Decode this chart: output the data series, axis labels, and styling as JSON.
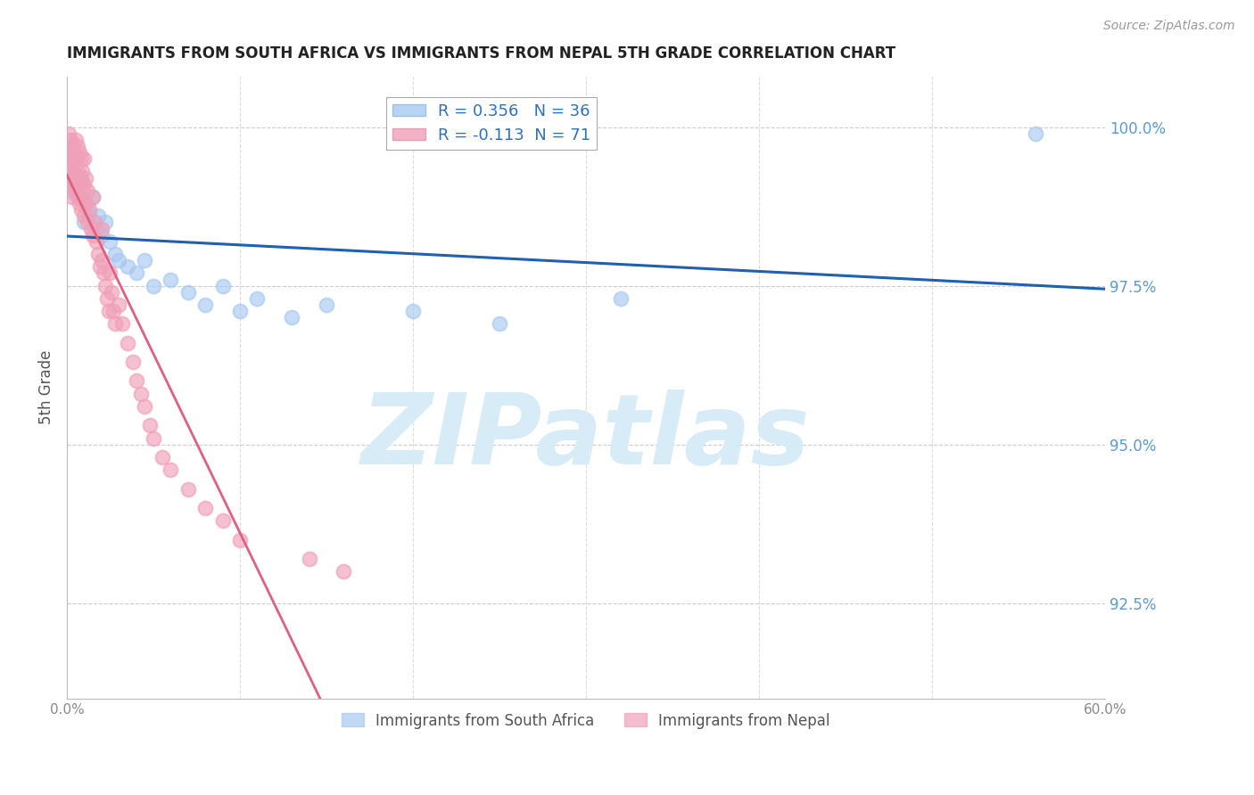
{
  "title": "IMMIGRANTS FROM SOUTH AFRICA VS IMMIGRANTS FROM NEPAL 5TH GRADE CORRELATION CHART",
  "source": "Source: ZipAtlas.com",
  "ylabel": "5th Grade",
  "right_ytick_labels": [
    "100.0%",
    "97.5%",
    "95.0%",
    "92.5%"
  ],
  "right_ytick_values": [
    1.0,
    0.975,
    0.95,
    0.925
  ],
  "xlim": [
    0.0,
    0.6
  ],
  "ylim": [
    0.91,
    1.008
  ],
  "R_south_africa": 0.356,
  "N_south_africa": 36,
  "R_nepal": -0.113,
  "N_nepal": 71,
  "color_south_africa": "#a8c8f0",
  "color_nepal": "#f0a0b8",
  "color_trendline_south_africa": "#2060b0",
  "color_trendline_nepal": "#e06080",
  "color_right_axis": "#5b9bd5",
  "watermark_color": "#d8ecf8",
  "sa_x": [
    0.001,
    0.002,
    0.003,
    0.004,
    0.005,
    0.006,
    0.007,
    0.008,
    0.01,
    0.011,
    0.012,
    0.013,
    0.015,
    0.017,
    0.018,
    0.02,
    0.022,
    0.025,
    0.028,
    0.03,
    0.035,
    0.04,
    0.045,
    0.05,
    0.06,
    0.07,
    0.08,
    0.09,
    0.1,
    0.11,
    0.13,
    0.15,
    0.2,
    0.25,
    0.32,
    0.56
  ],
  "sa_y": [
    0.99,
    0.991,
    0.993,
    0.991,
    0.99,
    0.992,
    0.989,
    0.992,
    0.985,
    0.988,
    0.987,
    0.986,
    0.989,
    0.984,
    0.986,
    0.983,
    0.985,
    0.982,
    0.98,
    0.979,
    0.978,
    0.977,
    0.979,
    0.975,
    0.976,
    0.974,
    0.972,
    0.975,
    0.971,
    0.973,
    0.97,
    0.972,
    0.971,
    0.969,
    0.973,
    0.999
  ],
  "ne_x": [
    0.001,
    0.001,
    0.001,
    0.001,
    0.002,
    0.002,
    0.002,
    0.002,
    0.003,
    0.003,
    0.003,
    0.003,
    0.004,
    0.004,
    0.004,
    0.005,
    0.005,
    0.005,
    0.006,
    0.006,
    0.006,
    0.007,
    0.007,
    0.007,
    0.008,
    0.008,
    0.008,
    0.009,
    0.009,
    0.01,
    0.01,
    0.01,
    0.011,
    0.011,
    0.012,
    0.012,
    0.013,
    0.014,
    0.015,
    0.015,
    0.016,
    0.017,
    0.018,
    0.019,
    0.02,
    0.02,
    0.021,
    0.022,
    0.023,
    0.024,
    0.025,
    0.026,
    0.027,
    0.028,
    0.03,
    0.032,
    0.035,
    0.038,
    0.04,
    0.043,
    0.045,
    0.048,
    0.05,
    0.055,
    0.06,
    0.07,
    0.08,
    0.09,
    0.1,
    0.14,
    0.16
  ],
  "ne_y": [
    0.999,
    0.997,
    0.995,
    0.993,
    0.998,
    0.996,
    0.994,
    0.991,
    0.997,
    0.995,
    0.992,
    0.989,
    0.996,
    0.993,
    0.99,
    0.998,
    0.995,
    0.991,
    0.997,
    0.993,
    0.989,
    0.996,
    0.992,
    0.988,
    0.995,
    0.991,
    0.987,
    0.993,
    0.989,
    0.995,
    0.991,
    0.986,
    0.992,
    0.988,
    0.99,
    0.985,
    0.987,
    0.984,
    0.989,
    0.983,
    0.985,
    0.982,
    0.98,
    0.978,
    0.984,
    0.979,
    0.977,
    0.975,
    0.973,
    0.971,
    0.977,
    0.974,
    0.971,
    0.969,
    0.972,
    0.969,
    0.966,
    0.963,
    0.96,
    0.958,
    0.956,
    0.953,
    0.951,
    0.948,
    0.946,
    0.943,
    0.94,
    0.938,
    0.935,
    0.932,
    0.93
  ],
  "ne_trend_solid_end": 0.18,
  "ne_trend_dashed_end": 0.6
}
